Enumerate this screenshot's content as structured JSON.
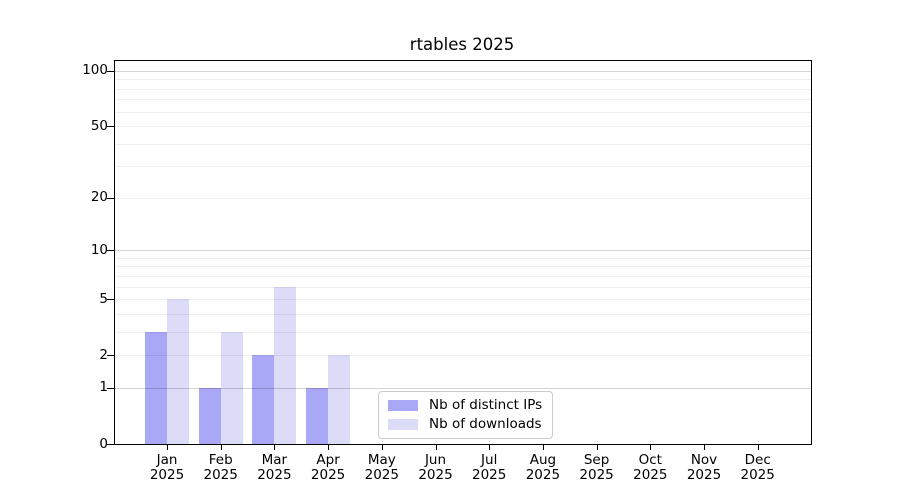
{
  "chart_data": {
    "type": "bar",
    "title": "rtables 2025",
    "categories": [
      "Jan 2025",
      "Feb 2025",
      "Mar 2025",
      "Apr 2025",
      "May 2025",
      "Jun 2025",
      "Jul 2025",
      "Aug 2025",
      "Sep 2025",
      "Oct 2025",
      "Nov 2025",
      "Dec 2025"
    ],
    "series": [
      {
        "name": "Nb of distinct IPs",
        "color": "#a8a8f6",
        "values": [
          3,
          1,
          2,
          1,
          0,
          0,
          0,
          0,
          0,
          0,
          0,
          0
        ]
      },
      {
        "name": "Nb of downloads",
        "color": "#dcdcf9",
        "values": [
          5,
          3,
          6,
          2,
          0,
          0,
          0,
          0,
          0,
          0,
          0,
          0
        ]
      }
    ],
    "yscale": "log1p",
    "yticks": [
      0,
      1,
      2,
      5,
      10,
      20,
      50,
      100
    ],
    "minor_grid_values": [
      2,
      3,
      4,
      5,
      6,
      7,
      8,
      9,
      20,
      30,
      40,
      50,
      60,
      70,
      80,
      90
    ],
    "major_grid_values": [
      1,
      10,
      100
    ],
    "ylim": [
      0,
      113
    ],
    "grid": "horizontal",
    "legend_position": "inside-bottom-center"
  }
}
